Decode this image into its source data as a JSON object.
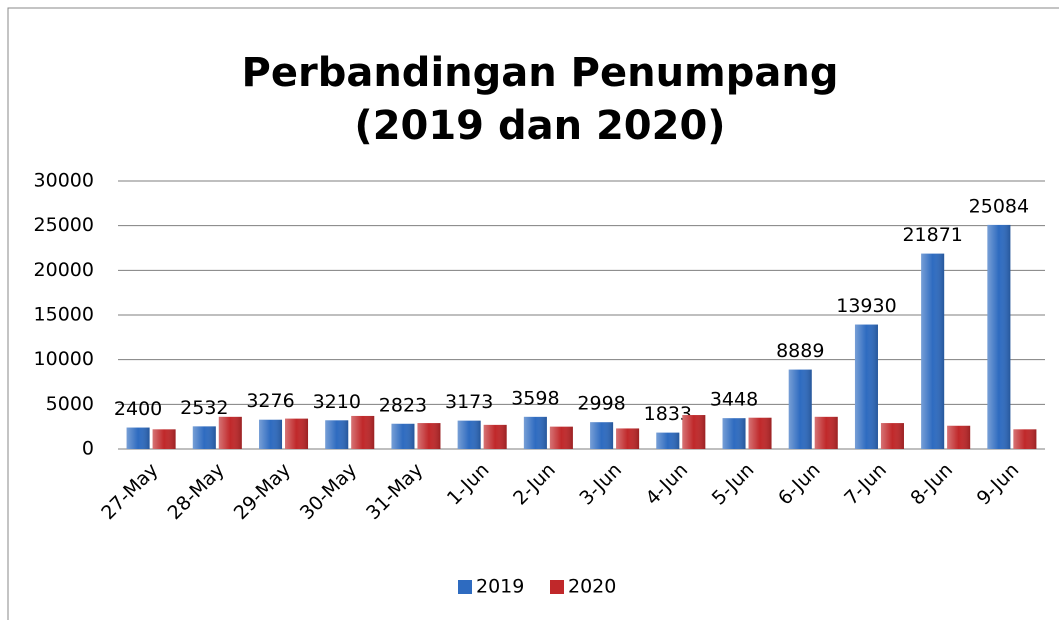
{
  "chart_data": {
    "type": "bar",
    "title": [
      "Perbandingan Penumpang",
      "(2019 dan 2020)"
    ],
    "categories": [
      "27-May",
      "28-May",
      "29-May",
      "30-May",
      "31-May",
      "1-Jun",
      "2-Jun",
      "3-Jun",
      "4-Jun",
      "5-Jun",
      "6-Jun",
      "7-Jun",
      "8-Jun",
      "9-Jun"
    ],
    "series": [
      {
        "name": "2019",
        "color": "#2e6bc0",
        "values": [
          2400,
          2532,
          3276,
          3210,
          2823,
          3173,
          3598,
          2998,
          1833,
          3448,
          8889,
          13930,
          21871,
          25084
        ]
      },
      {
        "name": "2020",
        "color": "#c0282a",
        "values": [
          2200,
          3600,
          3400,
          3700,
          2900,
          2700,
          2500,
          2300,
          3800,
          3500,
          3600,
          2900,
          2600,
          2200
        ]
      }
    ],
    "ylim": [
      0,
      30000
    ],
    "yticks": [
      0,
      5000,
      10000,
      15000,
      20000,
      25000,
      30000
    ],
    "grid": true,
    "legend": "bottom"
  }
}
